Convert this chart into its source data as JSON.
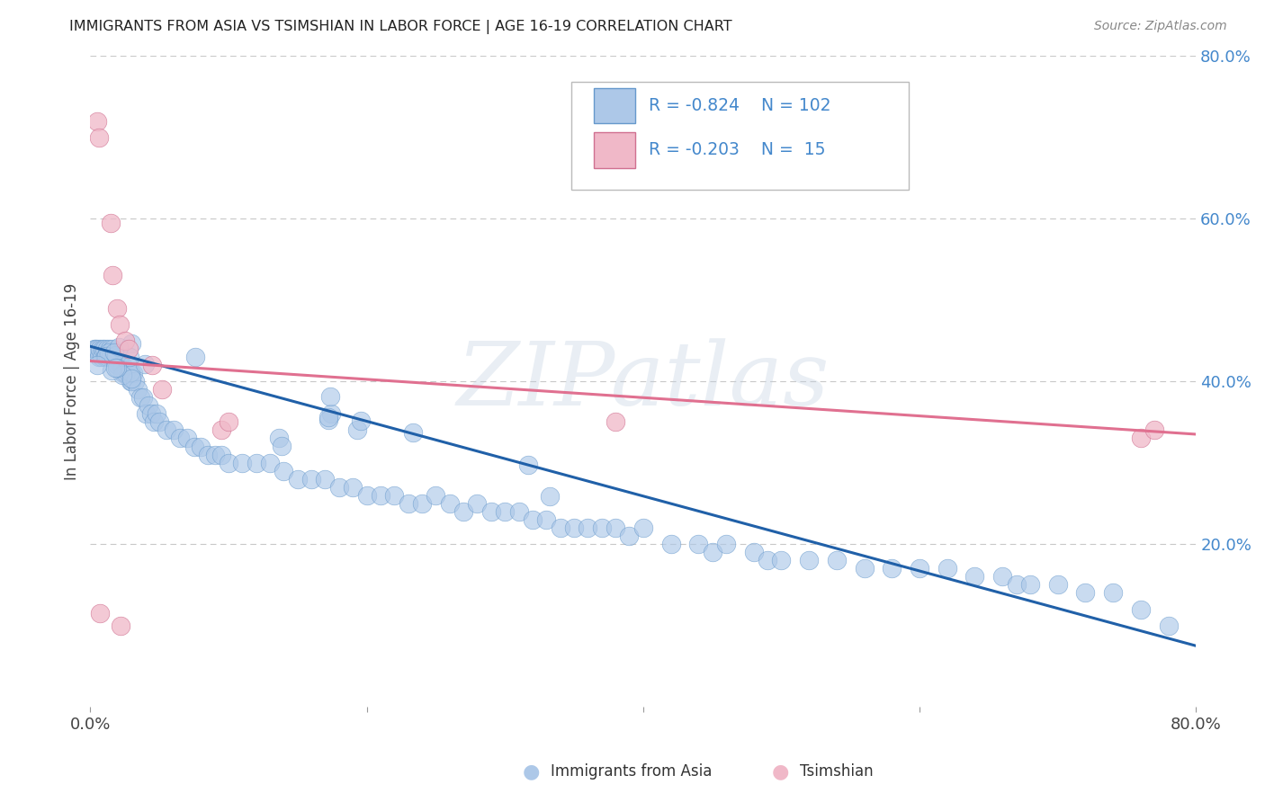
{
  "title": "IMMIGRANTS FROM ASIA VS TSIMSHIAN IN LABOR FORCE | AGE 16-19 CORRELATION CHART",
  "source": "Source: ZipAtlas.com",
  "ylabel": "In Labor Force | Age 16-19",
  "xlim": [
    0.0,
    0.8
  ],
  "ylim": [
    0.0,
    0.8
  ],
  "blue_color": "#5b9bd5",
  "trend_blue": "#2060a8",
  "trend_pink": "#e07090",
  "dot_blue_face": "#adc8e8",
  "dot_blue_edge": "#6699cc",
  "dot_pink_face": "#f0b8c8",
  "dot_pink_edge": "#d07090",
  "background": "#ffffff",
  "grid_color": "#c8c8c8",
  "watermark_color": "#c0cfe0",
  "right_tick_color": "#4488cc",
  "blue_line_start_y": 0.443,
  "blue_line_end_y": 0.075,
  "pink_line_start_y": 0.425,
  "pink_line_end_y": 0.335,
  "asia_x": [
    0.003,
    0.004,
    0.005,
    0.006,
    0.007,
    0.008,
    0.009,
    0.01,
    0.011,
    0.012,
    0.013,
    0.014,
    0.015,
    0.016,
    0.017,
    0.018,
    0.019,
    0.02,
    0.021,
    0.022,
    0.023,
    0.024,
    0.025,
    0.026,
    0.027,
    0.028,
    0.029,
    0.03,
    0.031,
    0.032,
    0.034,
    0.036,
    0.038,
    0.04,
    0.042,
    0.044,
    0.046,
    0.048,
    0.05,
    0.055,
    0.06,
    0.065,
    0.07,
    0.075,
    0.08,
    0.085,
    0.09,
    0.095,
    0.1,
    0.11,
    0.12,
    0.13,
    0.14,
    0.15,
    0.16,
    0.17,
    0.18,
    0.19,
    0.2,
    0.21,
    0.22,
    0.23,
    0.24,
    0.25,
    0.26,
    0.27,
    0.28,
    0.29,
    0.3,
    0.31,
    0.32,
    0.33,
    0.34,
    0.35,
    0.36,
    0.37,
    0.38,
    0.39,
    0.4,
    0.42,
    0.44,
    0.45,
    0.46,
    0.48,
    0.49,
    0.5,
    0.52,
    0.54,
    0.56,
    0.58,
    0.6,
    0.62,
    0.64,
    0.66,
    0.67,
    0.68,
    0.7,
    0.72,
    0.74,
    0.76,
    0.78
  ],
  "asia_y": [
    0.44,
    0.44,
    0.44,
    0.43,
    0.44,
    0.43,
    0.44,
    0.44,
    0.43,
    0.44,
    0.43,
    0.44,
    0.43,
    0.44,
    0.43,
    0.43,
    0.42,
    0.42,
    0.43,
    0.42,
    0.42,
    0.41,
    0.41,
    0.41,
    0.42,
    0.41,
    0.4,
    0.4,
    0.41,
    0.4,
    0.39,
    0.38,
    0.38,
    0.36,
    0.37,
    0.36,
    0.35,
    0.36,
    0.35,
    0.34,
    0.34,
    0.33,
    0.33,
    0.32,
    0.32,
    0.31,
    0.31,
    0.31,
    0.3,
    0.3,
    0.3,
    0.3,
    0.29,
    0.28,
    0.28,
    0.28,
    0.27,
    0.27,
    0.26,
    0.26,
    0.26,
    0.25,
    0.25,
    0.26,
    0.25,
    0.24,
    0.25,
    0.24,
    0.24,
    0.24,
    0.23,
    0.23,
    0.22,
    0.22,
    0.22,
    0.22,
    0.22,
    0.21,
    0.22,
    0.2,
    0.2,
    0.19,
    0.2,
    0.19,
    0.18,
    0.18,
    0.18,
    0.18,
    0.17,
    0.17,
    0.17,
    0.17,
    0.16,
    0.16,
    0.15,
    0.15,
    0.15,
    0.14,
    0.14,
    0.12,
    0.1
  ],
  "tsimshian_x": [
    0.005,
    0.006,
    0.015,
    0.016,
    0.019,
    0.021,
    0.025,
    0.028,
    0.045,
    0.052,
    0.095,
    0.1,
    0.38,
    0.76,
    0.77
  ],
  "tsimshian_y": [
    0.72,
    0.7,
    0.595,
    0.53,
    0.49,
    0.47,
    0.45,
    0.44,
    0.42,
    0.39,
    0.34,
    0.35,
    0.35,
    0.33,
    0.34
  ]
}
